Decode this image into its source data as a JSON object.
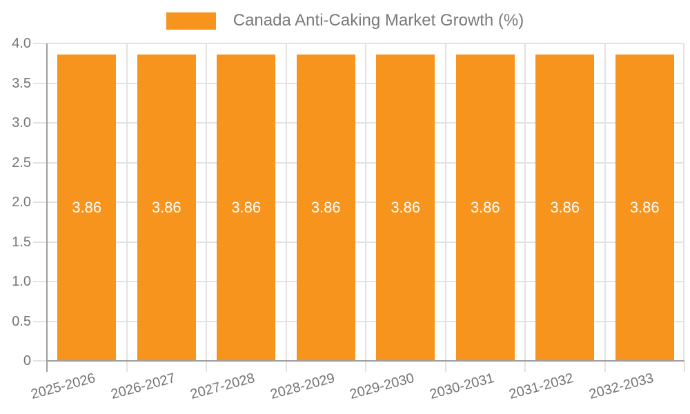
{
  "legend": {
    "swatch_color": "#F7941E",
    "label": "Canada Anti-Caking Market Growth (%)"
  },
  "chart_data": {
    "type": "bar",
    "title": "Canada Anti-Caking Market Growth (%)",
    "categories": [
      "2025-2026",
      "2026-2027",
      "2027-2028",
      "2028-2029",
      "2029-2030",
      "2030-2031",
      "2031-2032",
      "2032-2033"
    ],
    "series": [
      {
        "name": "Canada Anti-Caking Market Growth (%)",
        "values": [
          3.86,
          3.86,
          3.86,
          3.86,
          3.86,
          3.86,
          3.86,
          3.86
        ]
      }
    ],
    "bar_labels": [
      "3.86",
      "3.86",
      "3.86",
      "3.86",
      "3.86",
      "3.86",
      "3.86",
      "3.86"
    ],
    "xlabel": "",
    "ylabel": "",
    "ylim": [
      0,
      4.0
    ],
    "yticks": [
      {
        "label": "4.0",
        "value": 4.0
      },
      {
        "label": "3.5",
        "value": 3.5
      },
      {
        "label": "3.0",
        "value": 3.0
      },
      {
        "label": "2.5",
        "value": 2.5
      },
      {
        "label": "2.0",
        "value": 2.0
      },
      {
        "label": "1.5",
        "value": 1.5
      },
      {
        "label": "1.0",
        "value": 1.0
      },
      {
        "label": "0.5",
        "value": 0.5
      },
      {
        "label": "0",
        "value": 0
      }
    ],
    "grid": true,
    "legend_position": "top-center",
    "colors": {
      "bar": "#F7941E",
      "bar_label_text": "#FFFFFF",
      "axis_line": "#9E9E9E",
      "grid_line": "#E2E2E2",
      "tick_text": "#757575",
      "legend_text": "#7A7A7A"
    }
  }
}
